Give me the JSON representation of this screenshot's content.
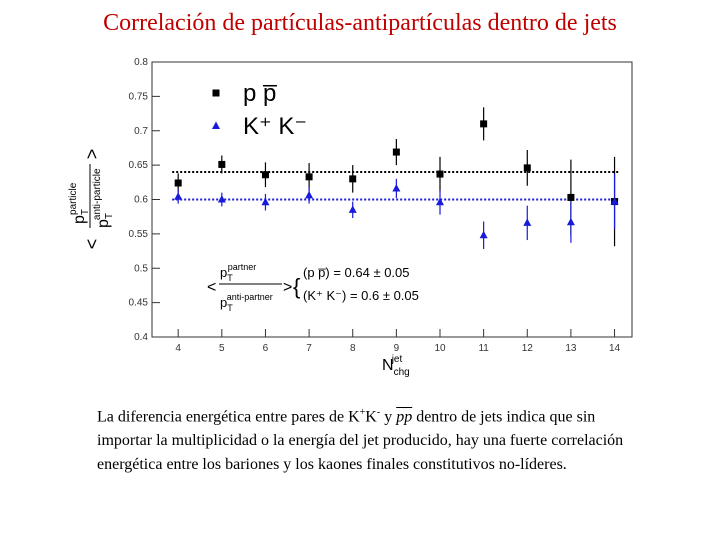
{
  "chart_data": {
    "type": "errorbar",
    "title": "Correlación de partículas-antipartículas dentro de jets",
    "y_label": {
      "open": "<",
      "num": "p",
      "num_sub": "T",
      "num_sup": "particle",
      "den": "p",
      "den_sub": "T",
      "den_sup": "anti-particle",
      "close": ">"
    },
    "x_label": {
      "main": "N",
      "sub": "chg",
      "sup": "jet"
    },
    "x": [
      4,
      5,
      6,
      7,
      8,
      9,
      10,
      11,
      12,
      13,
      14
    ],
    "xlim": [
      3.4,
      14.4
    ],
    "xticks": [
      4,
      5,
      6,
      7,
      8,
      9,
      10,
      11,
      12,
      13,
      14
    ],
    "ylim": [
      0.4,
      0.8
    ],
    "yticks": [
      0.4,
      0.45,
      0.5,
      0.55,
      0.6,
      0.65,
      0.7,
      0.75,
      0.8
    ],
    "series": [
      {
        "name": "p p̅",
        "color": "#000000",
        "marker": "square",
        "values": [
          0.624,
          0.651,
          0.636,
          0.633,
          0.63,
          0.669,
          0.637,
          0.71,
          0.646,
          0.603,
          0.597
        ],
        "errors": [
          0.014,
          0.013,
          0.018,
          0.02,
          0.02,
          0.019,
          0.025,
          0.024,
          0.026,
          0.055,
          0.065
        ]
      },
      {
        "name": "K⁺ K⁻",
        "color": "#1a1adc",
        "marker": "triangle",
        "values": [
          0.604,
          0.6,
          0.596,
          0.606,
          0.585,
          0.616,
          0.596,
          0.548,
          0.566,
          0.567,
          0.597
        ],
        "errors": [
          0.01,
          0.01,
          0.012,
          0.012,
          0.012,
          0.014,
          0.018,
          0.02,
          0.025,
          0.03,
          0.04
        ]
      }
    ],
    "reference_lines": [
      {
        "value": 0.64,
        "color": "#000000"
      },
      {
        "value": 0.6,
        "color": "#1a1adc"
      }
    ],
    "annotation": {
      "open": "<",
      "num": "p",
      "num_sub": "T",
      "num_sup": "partner",
      "den": "p",
      "den_sub": "T",
      "den_sup": "anti-partner",
      "close": ">",
      "brace": "{",
      "line1": "(p p̅) = 0.64 ± 0.05",
      "line2": "(K⁺ K⁻) = 0.6 ± 0.05"
    }
  },
  "caption": {
    "p1": "La diferencia energética entre pares de K",
    "sup1": "+",
    "p2": "K",
    "sup2": "-",
    "p3": " y ",
    "pp": "pp",
    "p4": " dentro de jets indica que sin importar la multiplicidad o la energía del jet producido, hay una fuerte correlación energética entre los bariones y los kaones finales constitutivos no-líderes."
  }
}
